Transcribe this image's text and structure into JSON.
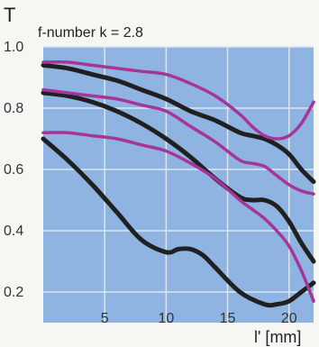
{
  "chart_data": {
    "type": "line",
    "title": "T",
    "subtitle": "f-number k = 2.8",
    "xlabel": "l' [mm]",
    "ylabel": "T",
    "xlim": [
      0,
      22
    ],
    "ylim": [
      0.1,
      1.0
    ],
    "xticks": [
      5,
      10,
      15,
      20
    ],
    "yticks": [
      0.2,
      0.4,
      0.6,
      0.8,
      1.0
    ],
    "ytick_labels": [
      "0.2",
      "0.4",
      "0.6",
      "0.8",
      "1.0"
    ],
    "grid": true,
    "colors": {
      "plot_bg": "#8fb4e2",
      "grid": "#d8e6f6",
      "black": "#202020",
      "magenta": "#a6359a"
    },
    "series": [
      {
        "color": "black",
        "x": [
          0,
          2,
          4,
          6,
          8,
          10,
          12,
          14,
          16,
          17,
          18,
          19,
          20,
          21,
          22
        ],
        "y": [
          0.94,
          0.93,
          0.91,
          0.89,
          0.86,
          0.83,
          0.79,
          0.76,
          0.72,
          0.71,
          0.7,
          0.68,
          0.65,
          0.6,
          0.56
        ]
      },
      {
        "color": "magenta",
        "x": [
          0,
          2,
          4,
          6,
          8,
          10,
          12,
          14,
          16,
          17,
          18,
          19,
          20,
          21,
          22
        ],
        "y": [
          0.95,
          0.95,
          0.94,
          0.93,
          0.92,
          0.91,
          0.88,
          0.84,
          0.78,
          0.74,
          0.71,
          0.7,
          0.71,
          0.75,
          0.82
        ]
      },
      {
        "color": "black",
        "x": [
          0,
          2,
          4,
          6,
          8,
          10,
          12,
          14,
          16,
          17,
          18,
          19,
          20,
          21,
          22
        ],
        "y": [
          0.85,
          0.84,
          0.82,
          0.79,
          0.75,
          0.7,
          0.64,
          0.57,
          0.51,
          0.5,
          0.5,
          0.48,
          0.43,
          0.36,
          0.3
        ]
      },
      {
        "color": "magenta",
        "x": [
          0,
          2,
          4,
          6,
          8,
          10,
          12,
          14,
          16,
          17,
          18,
          19,
          20,
          21,
          22
        ],
        "y": [
          0.86,
          0.85,
          0.84,
          0.83,
          0.81,
          0.79,
          0.74,
          0.69,
          0.63,
          0.62,
          0.61,
          0.58,
          0.55,
          0.53,
          0.52
        ]
      },
      {
        "color": "black",
        "x": [
          0,
          2,
          4,
          6,
          8,
          10,
          11,
          12,
          13,
          14,
          16,
          18,
          19,
          20,
          21,
          22
        ],
        "y": [
          0.7,
          0.63,
          0.55,
          0.46,
          0.37,
          0.33,
          0.34,
          0.34,
          0.32,
          0.28,
          0.2,
          0.16,
          0.16,
          0.17,
          0.2,
          0.23
        ]
      },
      {
        "color": "magenta",
        "x": [
          0,
          2,
          4,
          6,
          8,
          10,
          12,
          14,
          16,
          17,
          18,
          19,
          20,
          21,
          22
        ],
        "y": [
          0.72,
          0.72,
          0.71,
          0.7,
          0.68,
          0.66,
          0.62,
          0.57,
          0.5,
          0.47,
          0.44,
          0.4,
          0.35,
          0.27,
          0.17
        ]
      }
    ]
  }
}
